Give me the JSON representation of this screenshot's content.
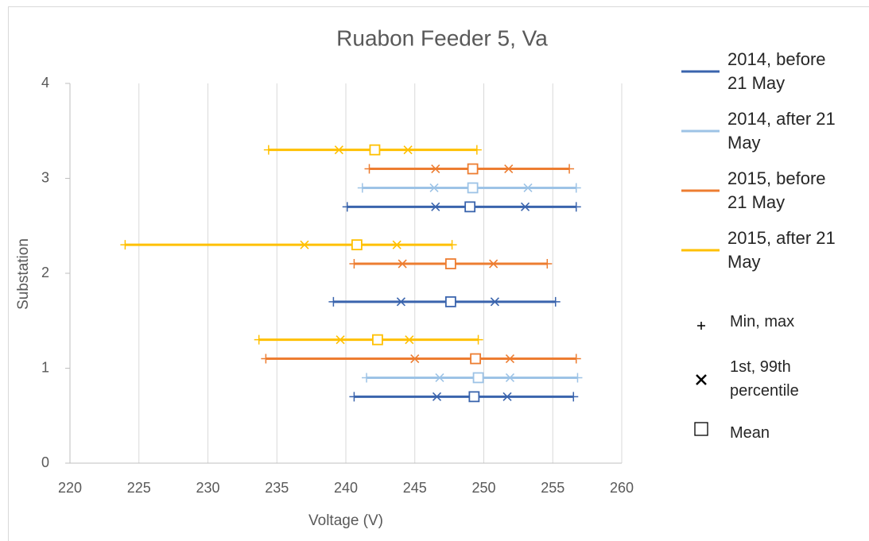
{
  "chart_data": {
    "type": "range",
    "title": "Ruabon Feeder 5, Va",
    "x_label": "Voltage (V)",
    "y_label": "Substation",
    "xlim": [
      220,
      260
    ],
    "xticks": [
      220,
      225,
      230,
      235,
      240,
      245,
      250,
      255,
      260
    ],
    "ylim": [
      0,
      4
    ],
    "yticks": [
      0,
      1,
      2,
      3,
      4
    ],
    "grid": true,
    "legend": "right",
    "series": [
      {
        "name": "2014, before 21 May",
        "color": "#3a64ad",
        "y": [
          0.7,
          1.7,
          2.7
        ],
        "min": [
          240.6,
          239.1,
          240.1
        ],
        "p1": [
          246.6,
          244.0,
          246.5
        ],
        "mean": [
          249.3,
          247.6,
          249.0
        ],
        "p99": [
          251.7,
          250.8,
          253.0
        ],
        "max": [
          256.5,
          255.2,
          256.7
        ]
      },
      {
        "name": "2014, after 21 May",
        "color": "#9dc3e6",
        "y": [
          0.9,
          2.9
        ],
        "min": [
          241.5,
          241.2
        ],
        "p1": [
          246.8,
          246.4
        ],
        "mean": [
          249.6,
          249.2
        ],
        "p99": [
          251.9,
          253.2
        ],
        "max": [
          256.8,
          256.7
        ]
      },
      {
        "name": "2015, before 21 May",
        "color": "#ed7d31",
        "y": [
          1.1,
          2.1,
          3.1
        ],
        "min": [
          234.2,
          240.6,
          241.7
        ],
        "p1": [
          245.0,
          244.1,
          246.5
        ],
        "mean": [
          249.4,
          247.6,
          249.2
        ],
        "p99": [
          251.9,
          250.7,
          251.8
        ],
        "max": [
          256.7,
          254.6,
          256.2
        ]
      },
      {
        "name": "2015, after 21 May",
        "color": "#ffc000",
        "y": [
          1.3,
          2.3,
          3.3
        ],
        "min": [
          233.7,
          224.0,
          234.4
        ],
        "p1": [
          239.6,
          237.0,
          239.5
        ],
        "mean": [
          242.3,
          240.8,
          242.1
        ],
        "p99": [
          244.6,
          243.7,
          244.5
        ],
        "max": [
          249.6,
          247.7,
          249.5
        ]
      }
    ],
    "marker_legend": {
      "min_max": "Min, max",
      "percentile": "1st, 99th percentile",
      "mean": "Mean"
    }
  }
}
